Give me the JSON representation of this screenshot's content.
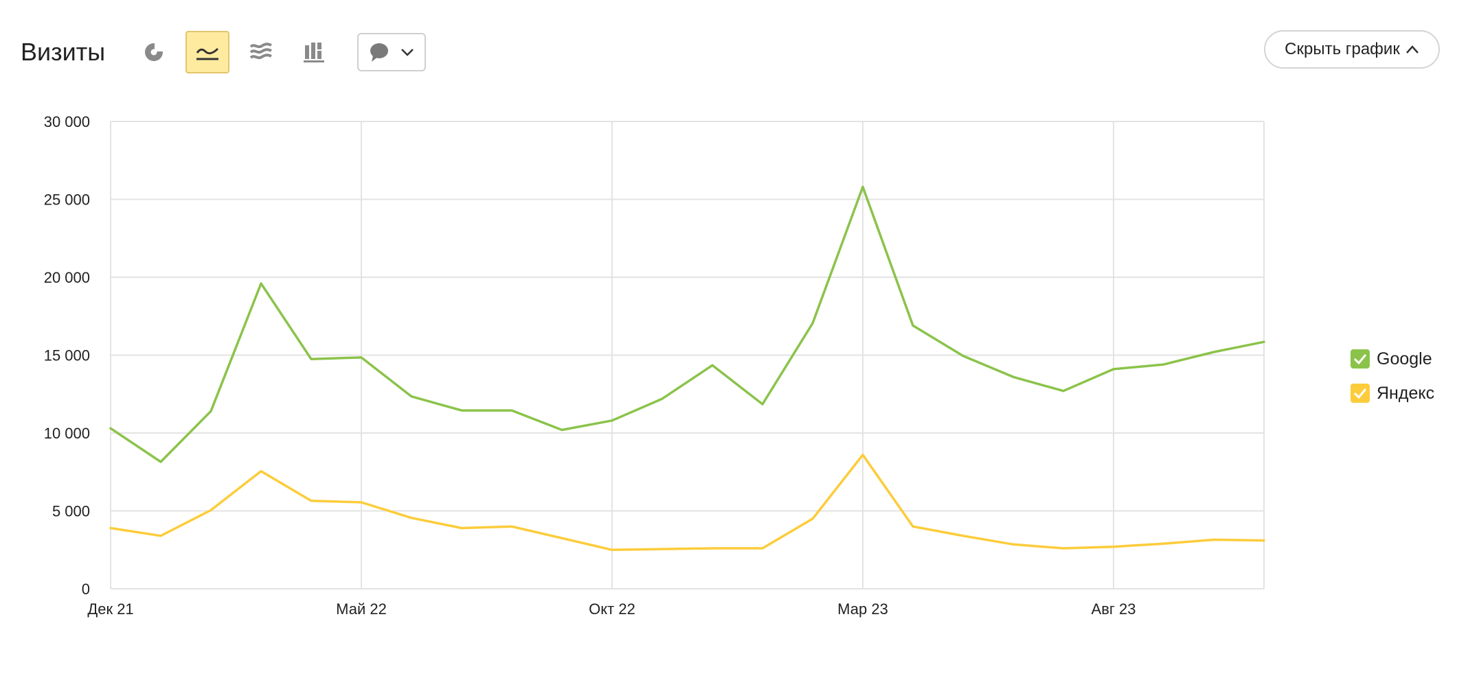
{
  "header": {
    "title": "Визиты",
    "hide_chart_label": "Скрыть график",
    "views": [
      {
        "name": "pie",
        "icon": "pie-chart-icon",
        "active": false
      },
      {
        "name": "line",
        "icon": "line-chart-icon",
        "active": true
      },
      {
        "name": "area",
        "icon": "stacked-area-icon",
        "active": false
      },
      {
        "name": "bar",
        "icon": "stacked-bar-icon",
        "active": false
      }
    ],
    "notes_icon": "comment-icon"
  },
  "colors": {
    "google": "#8bc34a",
    "yandex": "#fccc3a",
    "grid": "#e3e3e3",
    "active_bg": "#ffeba0"
  },
  "chart_data": {
    "type": "line",
    "title": "Визиты",
    "x": [
      "2021-12",
      "2022-01",
      "2022-02",
      "2022-03",
      "2022-04",
      "2022-05",
      "2022-06",
      "2022-07",
      "2022-08",
      "2022-09",
      "2022-10",
      "2022-11",
      "2022-12",
      "2023-01",
      "2023-02",
      "2023-03",
      "2023-04",
      "2023-05",
      "2023-06",
      "2023-07",
      "2023-08",
      "2023-09",
      "2023-10",
      "2023-11"
    ],
    "x_tick_labels": [
      {
        "index": 0,
        "label": "Дек 21"
      },
      {
        "index": 5,
        "label": "Май 22"
      },
      {
        "index": 10,
        "label": "Окт 22"
      },
      {
        "index": 15,
        "label": "Мар 23"
      },
      {
        "index": 20,
        "label": "Авг 23"
      }
    ],
    "ylim": [
      0,
      30000
    ],
    "y_ticks": [
      0,
      5000,
      10000,
      15000,
      20000,
      25000,
      30000
    ],
    "y_tick_labels": [
      "0",
      "5 000",
      "10 000",
      "15 000",
      "20 000",
      "25 000",
      "30 000"
    ],
    "grid": true,
    "legend_position": "right",
    "series": [
      {
        "name": "Google",
        "color": "#8bc34a",
        "values": [
          10300,
          8150,
          11400,
          19600,
          14750,
          14850,
          12350,
          11450,
          11450,
          10200,
          10800,
          12200,
          14350,
          11850,
          17050,
          25800,
          16900,
          14950,
          13600,
          12700,
          14100,
          14400,
          15200,
          15850
        ]
      },
      {
        "name": "Яндекс",
        "color": "#fccc3a",
        "values": [
          3900,
          3400,
          5050,
          7550,
          5650,
          5550,
          4550,
          3900,
          4000,
          3250,
          2500,
          2550,
          2600,
          2600,
          4500,
          8600,
          4000,
          3400,
          2850,
          2600,
          2700,
          2900,
          3150,
          3100
        ]
      }
    ]
  }
}
